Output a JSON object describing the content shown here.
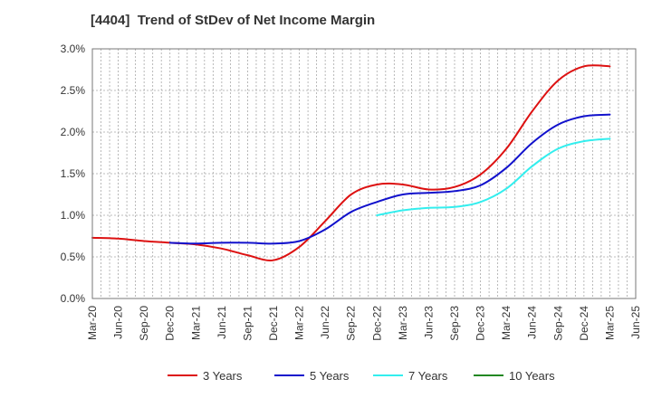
{
  "chart_data": {
    "type": "line",
    "title": "[4404]  Trend of StDev of Net Income Margin",
    "y_axis": {
      "min": 0.0,
      "max": 3.0,
      "ticks": [
        {
          "value": 0.0,
          "label": "0.0%"
        },
        {
          "value": 0.5,
          "label": "0.5%"
        },
        {
          "value": 1.0,
          "label": "1.0%"
        },
        {
          "value": 1.5,
          "label": "1.5%"
        },
        {
          "value": 2.0,
          "label": "2.0%"
        },
        {
          "value": 2.5,
          "label": "2.5%"
        },
        {
          "value": 3.0,
          "label": "3.0%"
        }
      ]
    },
    "x_axis": {
      "categories": [
        "Mar-20",
        "Jun-20",
        "Sep-20",
        "Dec-20",
        "Mar-21",
        "Jun-21",
        "Sep-21",
        "Dec-21",
        "Mar-22",
        "Jun-22",
        "Sep-22",
        "Dec-22",
        "Mar-23",
        "Jun-23",
        "Sep-23",
        "Dec-23",
        "Mar-24",
        "Jun-24",
        "Sep-24",
        "Dec-24",
        "Mar-25",
        "Jun-25"
      ]
    },
    "grid": true,
    "legend_position": "bottom",
    "series": [
      {
        "name": "3 Years",
        "color": "#dd1111",
        "values": [
          0.73,
          0.72,
          0.69,
          0.67,
          0.65,
          0.6,
          0.52,
          0.46,
          0.62,
          0.93,
          1.25,
          1.37,
          1.37,
          1.31,
          1.34,
          1.49,
          1.8,
          2.25,
          2.62,
          2.79,
          2.79,
          null
        ]
      },
      {
        "name": "5 Years",
        "color": "#1111cc",
        "values": [
          null,
          null,
          null,
          0.67,
          0.66,
          0.67,
          0.67,
          0.66,
          0.69,
          0.83,
          1.04,
          1.16,
          1.25,
          1.27,
          1.29,
          1.36,
          1.57,
          1.87,
          2.09,
          2.19,
          2.21,
          null
        ]
      },
      {
        "name": "7 Years",
        "color": "#33eeee",
        "values": [
          null,
          null,
          null,
          null,
          null,
          null,
          null,
          null,
          null,
          null,
          null,
          1.0,
          1.06,
          1.09,
          1.1,
          1.16,
          1.32,
          1.59,
          1.8,
          1.89,
          1.92,
          null
        ]
      },
      {
        "name": "10 Years",
        "color": "#228822",
        "values": [
          null,
          null,
          null,
          null,
          null,
          null,
          null,
          null,
          null,
          null,
          null,
          null,
          null,
          null,
          null,
          null,
          null,
          null,
          null,
          null,
          null,
          null
        ]
      }
    ]
  }
}
